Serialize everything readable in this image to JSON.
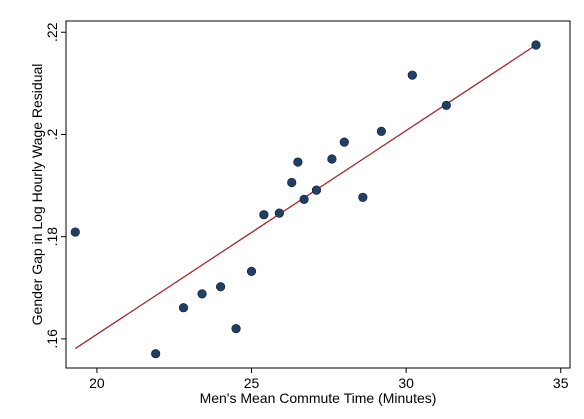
{
  "chart_data": {
    "type": "scatter",
    "title": "",
    "xlabel": "Men's Mean Commute Time (Minutes)",
    "ylabel": "Gender Gap in Log Hourly Wage Residual",
    "xlim": [
      19,
      35.3
    ],
    "ylim": [
      0.1543,
      0.2222
    ],
    "xticks": [
      20,
      25,
      30,
      35
    ],
    "xtick_labels": [
      "20",
      "25",
      "30",
      "35"
    ],
    "yticks": [
      0.16,
      0.18,
      0.2,
      0.22
    ],
    "ytick_labels": [
      ".16",
      ".18",
      ".2",
      ".22"
    ],
    "grid": false,
    "legend": "none",
    "colors": {
      "points": "#1f3f64",
      "fit_line": "#a52a2a",
      "frame": "#000000",
      "background": "#ffffff"
    },
    "points": [
      {
        "x": 19.3,
        "y": 0.1809
      },
      {
        "x": 21.9,
        "y": 0.1571
      },
      {
        "x": 22.8,
        "y": 0.1661
      },
      {
        "x": 23.4,
        "y": 0.1688
      },
      {
        "x": 24.0,
        "y": 0.1702
      },
      {
        "x": 24.5,
        "y": 0.162
      },
      {
        "x": 25.0,
        "y": 0.1732
      },
      {
        "x": 25.4,
        "y": 0.1843
      },
      {
        "x": 25.9,
        "y": 0.1846
      },
      {
        "x": 26.3,
        "y": 0.1906
      },
      {
        "x": 26.5,
        "y": 0.1946
      },
      {
        "x": 26.7,
        "y": 0.1873
      },
      {
        "x": 27.1,
        "y": 0.1891
      },
      {
        "x": 27.6,
        "y": 0.1952
      },
      {
        "x": 28.0,
        "y": 0.1985
      },
      {
        "x": 28.6,
        "y": 0.1877
      },
      {
        "x": 29.2,
        "y": 0.2006
      },
      {
        "x": 30.2,
        "y": 0.2116
      },
      {
        "x": 31.3,
        "y": 0.2057
      },
      {
        "x": 34.2,
        "y": 0.2175
      }
    ],
    "fit_line": {
      "x": [
        19.3,
        34.2
      ],
      "y": [
        0.1581,
        0.2175
      ]
    }
  }
}
